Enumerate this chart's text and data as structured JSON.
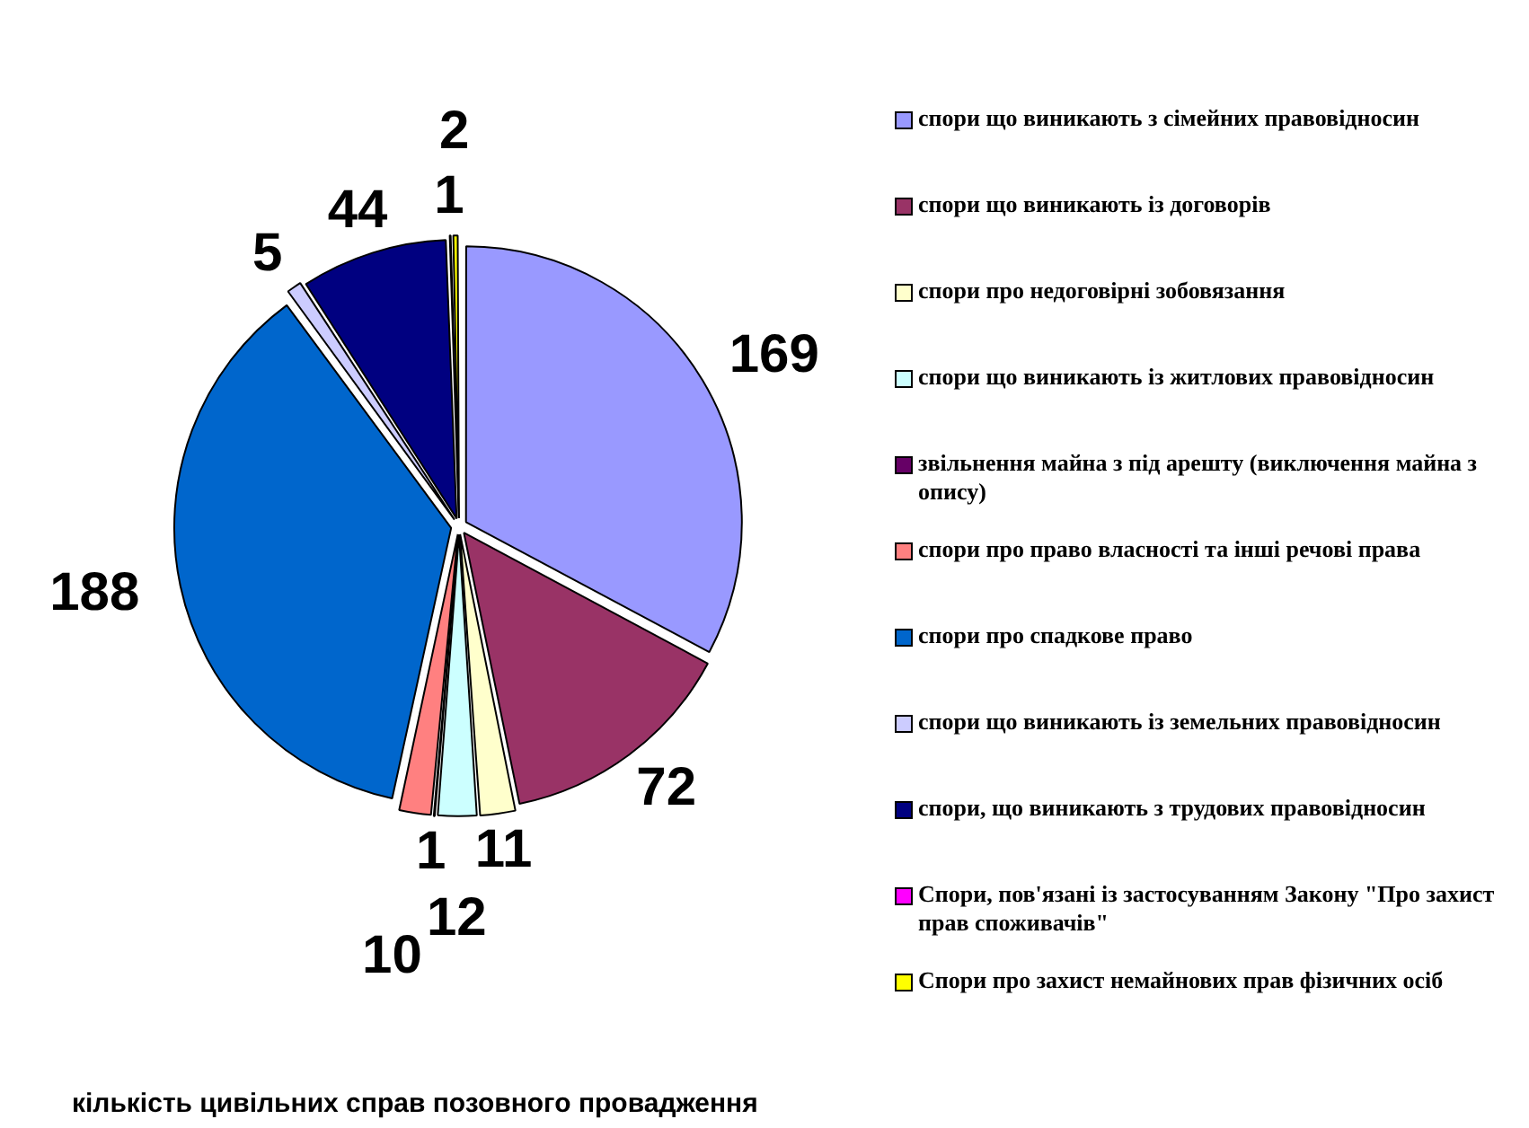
{
  "chart_data": {
    "type": "pie",
    "title": "кількість цивільних справ позовного провадження",
    "categories": [
      "спори що виникають з сімейних правовідносин",
      "спори що виникають із договорів",
      "спори про недоговірні зобовязання",
      "спори що виникають із житлових правовідносин",
      "звільнення майна з під арешту (виключення майна з опису)",
      "спори про право власності та інші речові права",
      "спори про спадкове право",
      "спори що виникають із земельних правовідносин",
      "спори, що виникають з трудових правовідносин",
      "Спори, пов'язані із застосуванням Закону \"Про захист прав споживачів\"",
      "Спори про захист немайнових прав фізичних осіб"
    ],
    "values": [
      169,
      72,
      11,
      12,
      1,
      10,
      188,
      5,
      44,
      1,
      2
    ],
    "colors": [
      "#9999ff",
      "#993366",
      "#ffffcc",
      "#ccffff",
      "#660066",
      "#ff8080",
      "#0066cc",
      "#ccccff",
      "#000080",
      "#ff00ff",
      "#ffff00"
    ],
    "data_labels": true,
    "legend": "right"
  }
}
